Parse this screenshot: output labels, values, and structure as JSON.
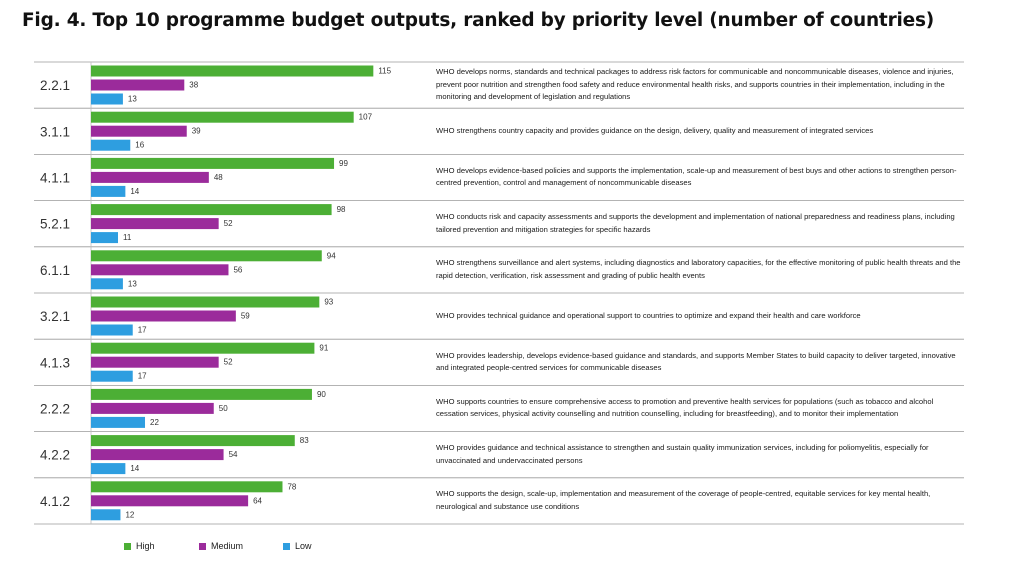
{
  "chart_data": {
    "type": "bar",
    "orientation": "horizontal",
    "title": "Fig. 4. Top 10 programme budget outputs, ranked by priority level (number of countries)",
    "categories": [
      "2.2.1",
      "3.1.1",
      "4.1.1",
      "5.2.1",
      "6.1.1",
      "3.2.1",
      "4.1.3",
      "2.2.2",
      "4.2.2",
      "4.1.2"
    ],
    "descriptions": [
      "WHO develops norms, standards and technical packages to address risk factors for communicable and noncommunicable diseases, violence and injuries, prevent poor nutrition and strengthen food safety and reduce environmental health risks, and supports countries in their implementation, including in the monitoring and development of legislation and regulations",
      "WHO strengthens country capacity and provides guidance on the design, delivery, quality and measurement of integrated services",
      "WHO develops evidence-based policies and supports the implementation, scale-up and measurement of best buys and other actions to strengthen person-centred prevention, control and management of noncommunicable diseases",
      "WHO conducts risk and capacity assessments and supports the development and implementation of national preparedness and readiness plans, including tailored prevention and mitigation strategies for specific hazards",
      "WHO strengthens surveillance and alert systems, including diagnostics and laboratory capacities, for the effective monitoring of public health threats and the rapid detection, verification, risk assessment and grading of public health events",
      "WHO provides technical guidance and operational support to countries to optimize and expand their health and care workforce",
      "WHO provides leadership, develops evidence-based guidance and standards, and supports Member States to build capacity to deliver targeted, innovative and integrated people-centred services for communicable diseases",
      "WHO supports countries to ensure comprehensive access to promotion and preventive health services for populations (such as tobacco and alcohol cessation services, physical activity counselling and nutrition counselling, including for breastfeeding), and to monitor their implementation",
      "WHO provides guidance and technical assistance to strengthen and sustain quality immunization services, including for poliomyelitis, especially for unvaccinated and undervaccinated persons",
      "WHO supports the design, scale-up, implementation and measurement of the coverage of people-centred, equitable services for key mental health, neurological and substance use conditions"
    ],
    "series": [
      {
        "name": "High",
        "color": "#4caf35",
        "values": [
          115,
          107,
          99,
          98,
          94,
          93,
          91,
          90,
          83,
          78
        ]
      },
      {
        "name": "Medium",
        "color": "#9b2b9b",
        "values": [
          38,
          39,
          48,
          52,
          56,
          59,
          52,
          50,
          54,
          64
        ]
      },
      {
        "name": "Low",
        "color": "#2e9ee0",
        "values": [
          13,
          16,
          14,
          11,
          13,
          17,
          17,
          22,
          14,
          12
        ]
      }
    ],
    "xlim": [
      0,
      130
    ],
    "legend_position": "bottom-left",
    "grid": false
  }
}
